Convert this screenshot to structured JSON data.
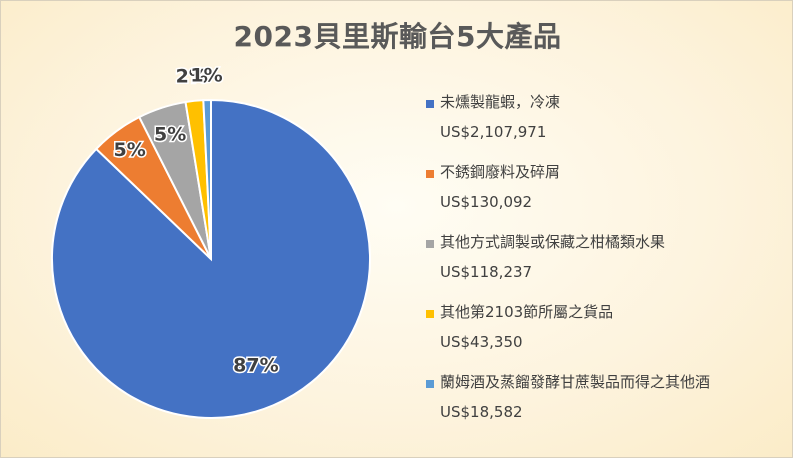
{
  "chart_data": {
    "type": "pie",
    "title": "2023貝里斯輸台5大產品",
    "categories": [
      "未燻製龍蝦，冷凍",
      "不銹鋼廢料及碎屑",
      "其他方式調製或保藏之柑橘類水果",
      "其他第2103節所屬之貨品",
      "蘭姆酒及蒸餾發酵甘蔗製品而得之其他酒"
    ],
    "values": [
      2107971,
      130092,
      118237,
      43350,
      18582
    ],
    "value_labels": [
      "US$2,107,971",
      "US$130,092",
      "US$118,237",
      "US$43,350",
      "US$18,582"
    ],
    "percent_labels": [
      "87%",
      "5%",
      "5%",
      "2%",
      "1%"
    ],
    "colors": [
      "#4472C4",
      "#ED7D31",
      "#A5A5A5",
      "#FFC000",
      "#5B9BD5"
    ],
    "legend": "right"
  }
}
